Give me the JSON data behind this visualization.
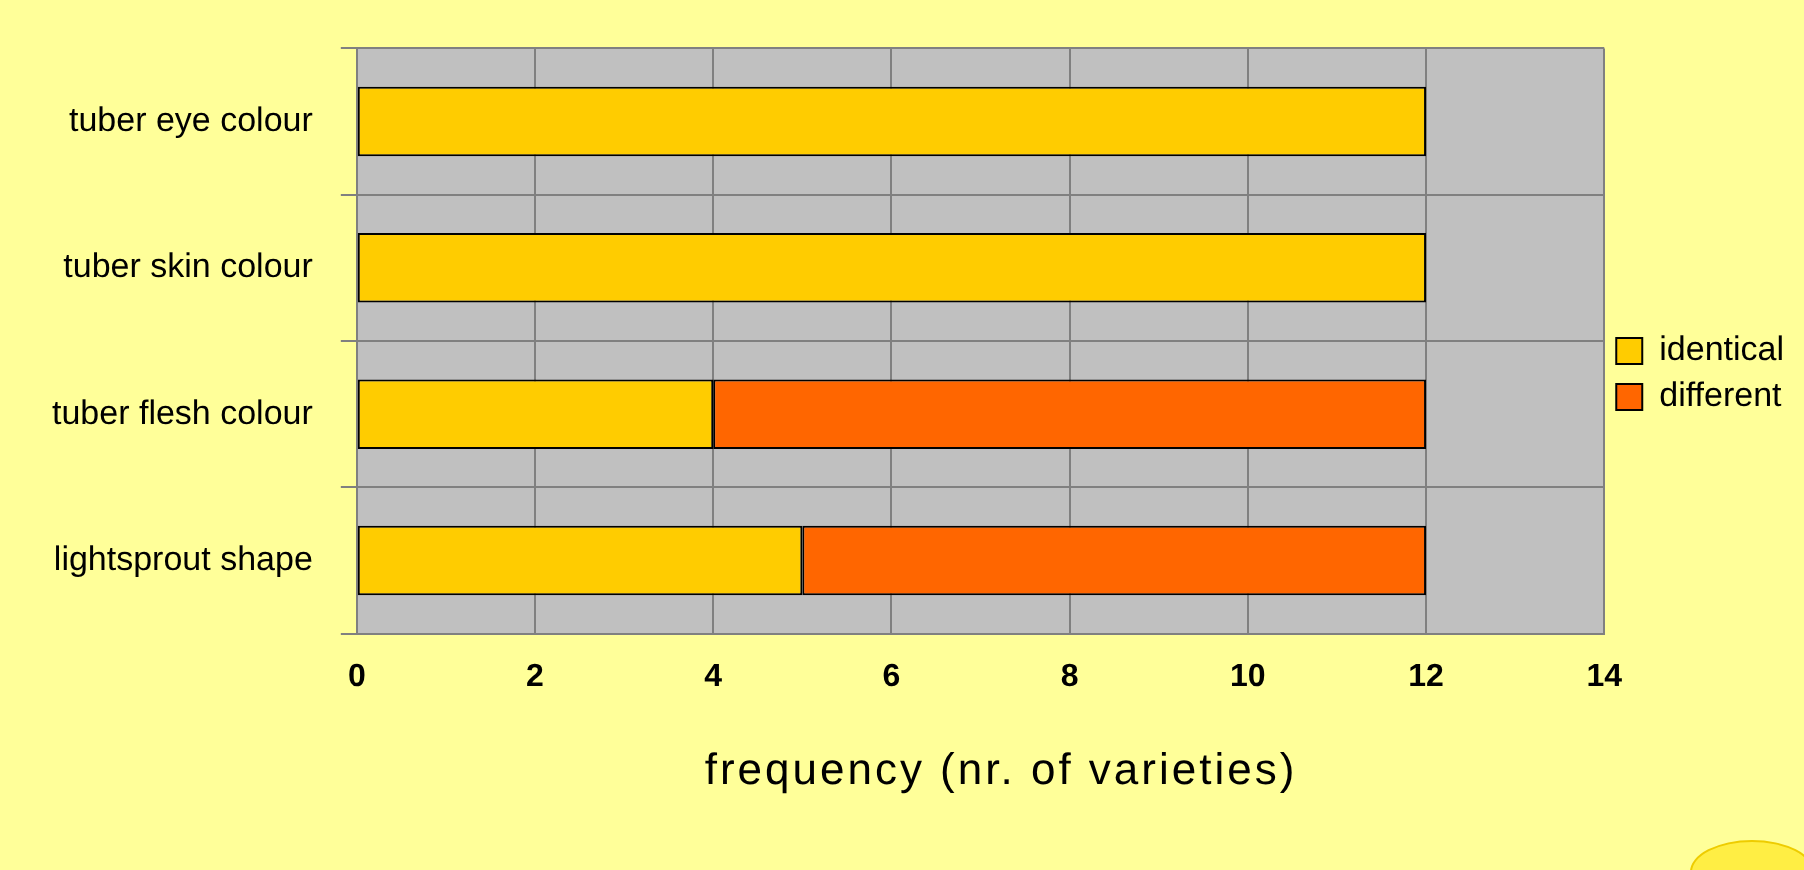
{
  "chart_data": {
    "type": "bar",
    "orientation": "horizontal",
    "stacked": true,
    "xlabel": "frequency (nr. of varieties)",
    "categories": [
      "tuber eye colour",
      "tuber skin colour",
      "tuber flesh colour",
      "lightsprout shape"
    ],
    "series": [
      {
        "name": "identical",
        "color": "#ffcc00",
        "values": [
          12,
          12,
          4,
          5
        ]
      },
      {
        "name": "different",
        "color": "#ff6600",
        "values": [
          0,
          0,
          8,
          7
        ]
      }
    ],
    "xlim": [
      0,
      14
    ],
    "xticks": [
      0,
      2,
      4,
      6,
      8,
      10,
      12,
      14
    ],
    "grid": true,
    "legend": "right"
  }
}
